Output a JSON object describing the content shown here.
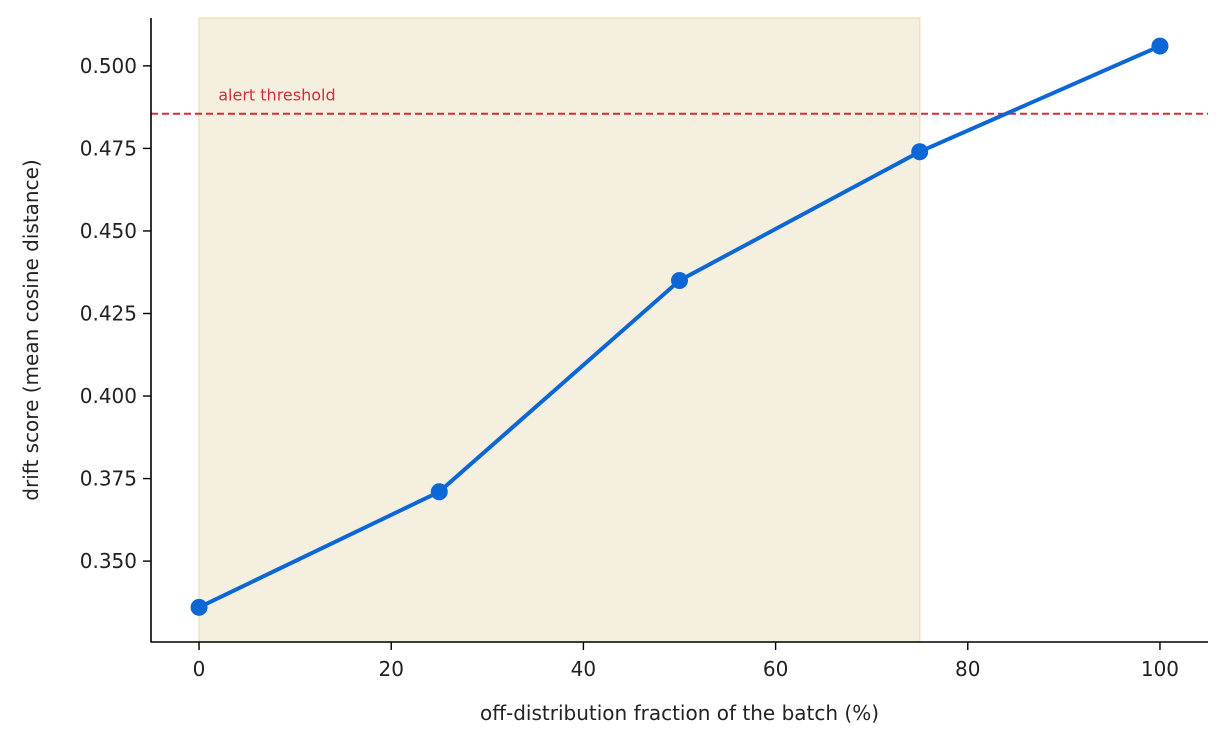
{
  "chart_data": {
    "type": "line",
    "title": "",
    "xlabel": "off-distribution fraction of the batch (%)",
    "ylabel": "drift score (mean cosine distance)",
    "xlim": [
      -5,
      105
    ],
    "ylim": [
      0.3255,
      0.5145
    ],
    "xticks": [
      0,
      20,
      40,
      60,
      80,
      100
    ],
    "yticks": [
      0.35,
      0.375,
      0.4,
      0.425,
      0.45,
      0.475,
      0.5
    ],
    "ytick_format": 3,
    "grid": false,
    "legend": "none",
    "series": [
      {
        "x": [
          0,
          25,
          50,
          75,
          100
        ],
        "y": [
          0.336,
          0.371,
          0.435,
          0.474,
          0.506
        ],
        "color": "#0b67d6"
      }
    ],
    "shaded_region": {
      "x": [
        0,
        75
      ],
      "color": "#f5efe0",
      "edge_color": "#f0e2bb"
    },
    "threshold": {
      "y": 0.4855,
      "label": "alert threshold",
      "color": "#d62d37"
    }
  }
}
